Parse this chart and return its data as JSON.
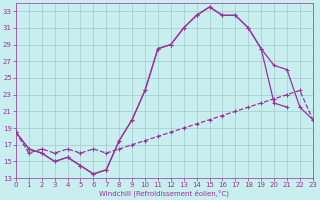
{
  "xlabel": "Windchill (Refroidissement éolien,°C)",
  "bg_color": "#c8eef0",
  "grid_color": "#a0cccc",
  "line_color": "#993399",
  "xlim": [
    0,
    23
  ],
  "ylim": [
    13,
    34
  ],
  "yticks": [
    13,
    15,
    17,
    19,
    21,
    23,
    25,
    27,
    29,
    31,
    33
  ],
  "xticks": [
    0,
    1,
    2,
    3,
    4,
    5,
    6,
    7,
    8,
    9,
    10,
    11,
    12,
    13,
    14,
    15,
    16,
    17,
    18,
    19,
    20,
    21,
    22,
    23
  ],
  "curve_upper_x": [
    0,
    1,
    2,
    3,
    4,
    5,
    6,
    7,
    8,
    9,
    10,
    11,
    12,
    13,
    14,
    15,
    16,
    17,
    18,
    19,
    20,
    21
  ],
  "curve_upper_y": [
    18.5,
    16.5,
    16.0,
    15.0,
    15.5,
    14.5,
    13.5,
    14.0,
    17.5,
    20.0,
    23.5,
    28.5,
    29.0,
    31.0,
    32.5,
    33.5,
    32.5,
    32.5,
    31.0,
    28.5,
    22.0,
    21.5
  ],
  "curve_mid_x": [
    0,
    1,
    2,
    3,
    4,
    5,
    6,
    7,
    8,
    9,
    10,
    11,
    12,
    13,
    14,
    15,
    16,
    17,
    18,
    19,
    20,
    21,
    22,
    23
  ],
  "curve_mid_y": [
    18.5,
    16.5,
    16.0,
    15.0,
    15.5,
    14.5,
    13.5,
    14.0,
    17.5,
    20.0,
    23.5,
    28.5,
    29.0,
    31.0,
    32.5,
    33.5,
    32.5,
    32.5,
    31.0,
    28.5,
    26.5,
    26.0,
    21.5,
    20.0
  ],
  "curve_dashed_x": [
    0,
    1,
    2,
    3,
    4,
    5,
    6,
    7,
    8,
    9,
    10,
    11,
    12,
    13,
    14,
    15,
    16,
    17,
    18,
    19,
    20,
    21,
    22,
    23
  ],
  "curve_dashed_y": [
    18.5,
    16.0,
    16.5,
    16.0,
    16.5,
    16.0,
    16.5,
    16.0,
    16.5,
    17.0,
    17.5,
    18.0,
    18.5,
    19.0,
    19.5,
    20.0,
    20.5,
    21.0,
    21.5,
    22.0,
    22.5,
    23.0,
    23.5,
    20.0
  ]
}
